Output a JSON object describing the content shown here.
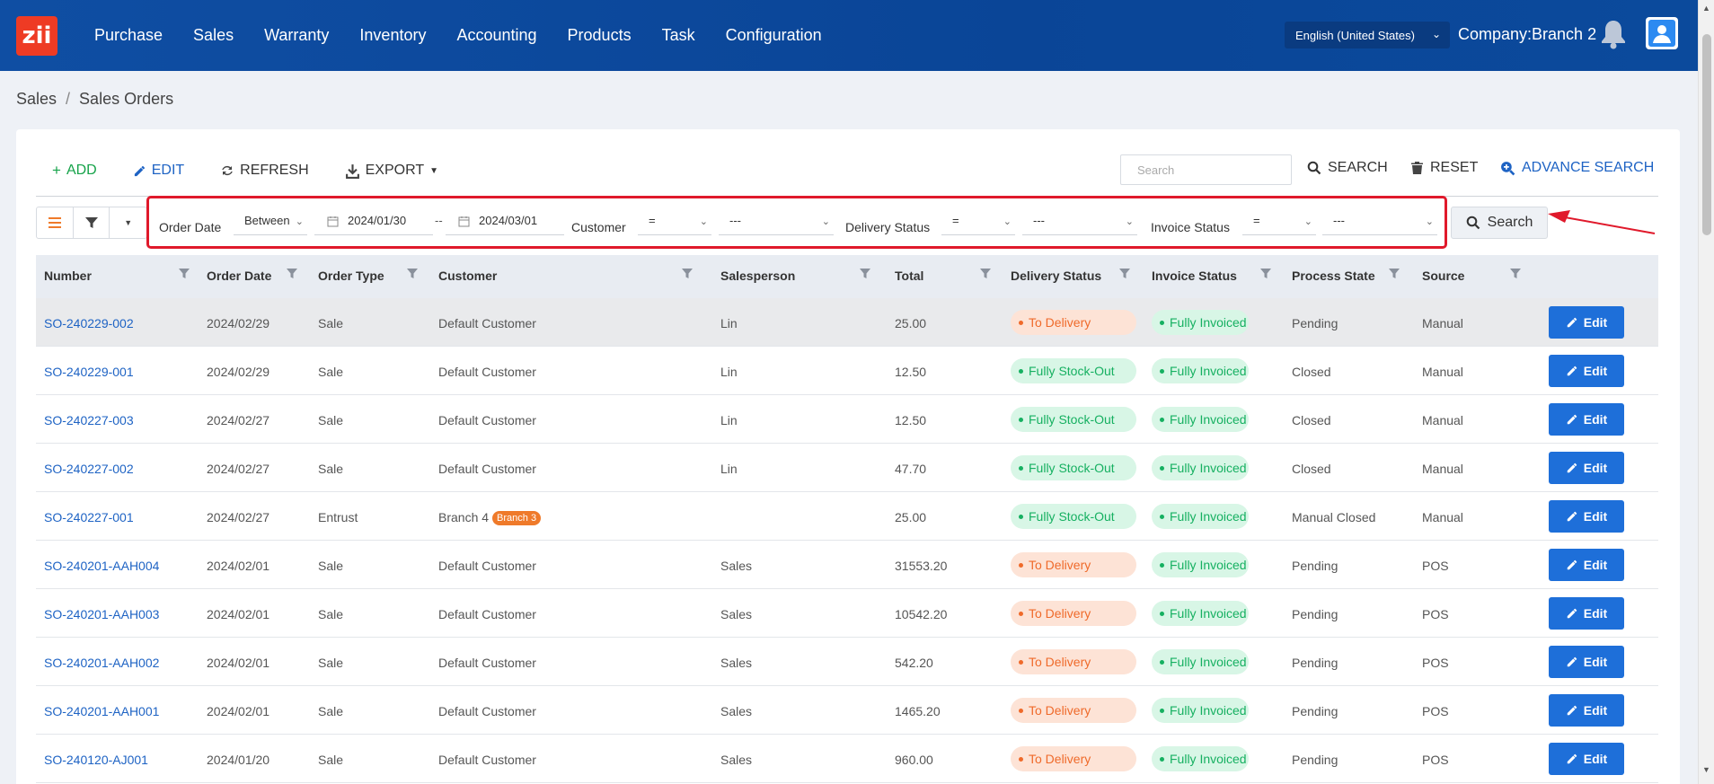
{
  "app": {
    "logo_text": "zii",
    "nav": [
      "Purchase",
      "Sales",
      "Warranty",
      "Inventory",
      "Accounting",
      "Products",
      "Task",
      "Configuration"
    ],
    "language": "English (United States)",
    "company": "Company:Branch 2"
  },
  "breadcrumb": {
    "root": "Sales",
    "separator": "/",
    "current": "Sales Orders"
  },
  "toolbar": {
    "add": "ADD",
    "edit": "EDIT",
    "refresh": "REFRESH",
    "export": "EXPORT",
    "search_placeholder": "Search",
    "search": "SEARCH",
    "reset": "RESET",
    "advance_search": "ADVANCE SEARCH"
  },
  "filters": {
    "order_date_label": "Order Date",
    "order_date_op": "Between",
    "date_from": "2024/01/30",
    "date_sep": "--",
    "date_to": "2024/03/01",
    "customer_label": "Customer",
    "customer_op": "=",
    "customer_value": "---",
    "delivery_label": "Delivery Status",
    "delivery_op": "=",
    "delivery_value": "---",
    "invoice_label": "Invoice Status",
    "invoice_op": "=",
    "invoice_value": "---",
    "search_button": "Search"
  },
  "table": {
    "columns": [
      "Number",
      "Order Date",
      "Order Type",
      "Customer",
      "Salesperson",
      "Total",
      "Delivery Status",
      "Invoice Status",
      "Process State",
      "Source"
    ],
    "edit_label": "Edit",
    "rows": [
      {
        "number": "SO-240229-002",
        "date": "2024/02/29",
        "type": "Sale",
        "customer": "Default Customer",
        "badge": "",
        "salesperson": "Lin",
        "total": "25.00",
        "delivery": "To Delivery",
        "invoice": "Fully Invoiced",
        "state": "Pending",
        "source": "Manual"
      },
      {
        "number": "SO-240229-001",
        "date": "2024/02/29",
        "type": "Sale",
        "customer": "Default Customer",
        "badge": "",
        "salesperson": "Lin",
        "total": "12.50",
        "delivery": "Fully Stock-Out",
        "invoice": "Fully Invoiced",
        "state": "Closed",
        "source": "Manual"
      },
      {
        "number": "SO-240227-003",
        "date": "2024/02/27",
        "type": "Sale",
        "customer": "Default Customer",
        "badge": "",
        "salesperson": "Lin",
        "total": "12.50",
        "delivery": "Fully Stock-Out",
        "invoice": "Fully Invoiced",
        "state": "Closed",
        "source": "Manual"
      },
      {
        "number": "SO-240227-002",
        "date": "2024/02/27",
        "type": "Sale",
        "customer": "Default Customer",
        "badge": "",
        "salesperson": "Lin",
        "total": "47.70",
        "delivery": "Fully Stock-Out",
        "invoice": "Fully Invoiced",
        "state": "Closed",
        "source": "Manual"
      },
      {
        "number": "SO-240227-001",
        "date": "2024/02/27",
        "type": "Entrust",
        "customer": "Branch 4",
        "badge": "Branch 3",
        "salesperson": "",
        "total": "25.00",
        "delivery": "Fully Stock-Out",
        "invoice": "Fully Invoiced",
        "state": "Manual Closed",
        "source": "Manual"
      },
      {
        "number": "SO-240201-AAH004",
        "date": "2024/02/01",
        "type": "Sale",
        "customer": "Default Customer",
        "badge": "",
        "salesperson": "Sales",
        "total": "31553.20",
        "delivery": "To Delivery",
        "invoice": "Fully Invoiced",
        "state": "Pending",
        "source": "POS"
      },
      {
        "number": "SO-240201-AAH003",
        "date": "2024/02/01",
        "type": "Sale",
        "customer": "Default Customer",
        "badge": "",
        "salesperson": "Sales",
        "total": "10542.20",
        "delivery": "To Delivery",
        "invoice": "Fully Invoiced",
        "state": "Pending",
        "source": "POS"
      },
      {
        "number": "SO-240201-AAH002",
        "date": "2024/02/01",
        "type": "Sale",
        "customer": "Default Customer",
        "badge": "",
        "salesperson": "Sales",
        "total": "542.20",
        "delivery": "To Delivery",
        "invoice": "Fully Invoiced",
        "state": "Pending",
        "source": "POS"
      },
      {
        "number": "SO-240201-AAH001",
        "date": "2024/02/01",
        "type": "Sale",
        "customer": "Default Customer",
        "badge": "",
        "salesperson": "Sales",
        "total": "1465.20",
        "delivery": "To Delivery",
        "invoice": "Fully Invoiced",
        "state": "Pending",
        "source": "POS"
      },
      {
        "number": "SO-240120-AJ001",
        "date": "2024/01/20",
        "type": "Sale",
        "customer": "Default Customer",
        "badge": "",
        "salesperson": "Sales",
        "total": "960.00",
        "delivery": "To Delivery",
        "invoice": "Fully Invoiced",
        "state": "Pending",
        "source": "POS"
      }
    ]
  },
  "colors": {
    "nav_bg": "#0b4a9c",
    "accent_blue": "#1e6fd9",
    "add_green": "#16a34a",
    "to_delivery": "#ef6a2a",
    "stock_out": "#16b061",
    "highlight_red": "#e0192b"
  },
  "icons": {
    "bell": "bell-icon",
    "avatar": "user-avatar-icon",
    "add": "plus-icon",
    "edit": "pencil-icon",
    "refresh": "refresh-icon",
    "export": "download-icon",
    "search": "search-icon",
    "reset": "trash-icon",
    "advance": "search-plus-icon",
    "calendar": "calendar-icon",
    "column_filter": "funnel-icon"
  }
}
